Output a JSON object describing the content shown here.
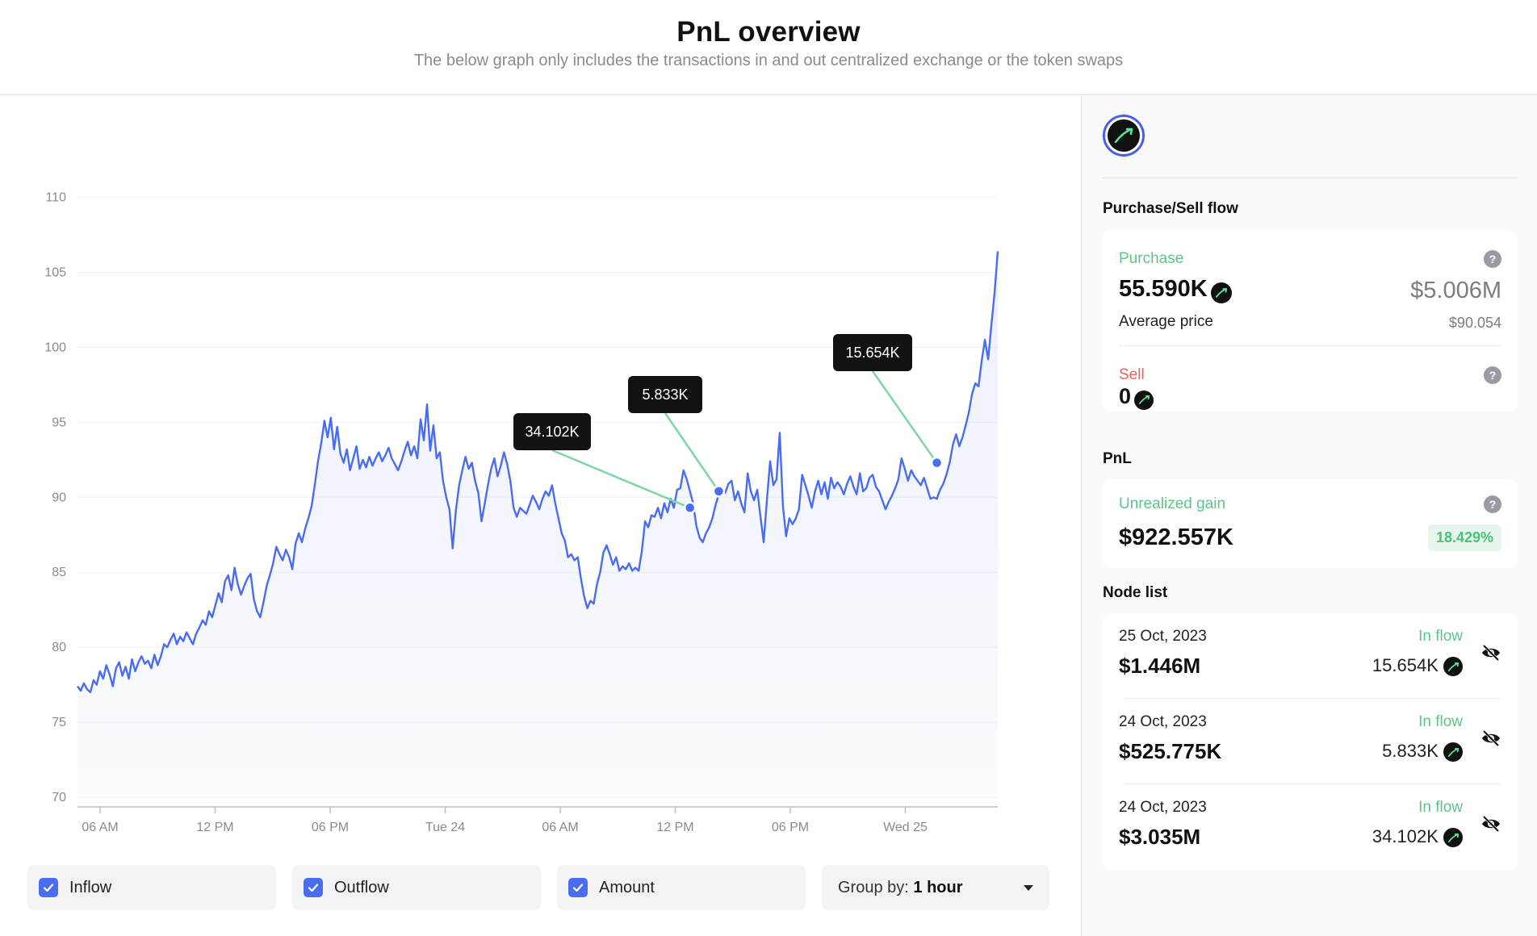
{
  "header": {
    "title": "PnL overview",
    "subtitle": "The below graph only includes the transactions in and out centralized exchange or the token swaps"
  },
  "chart_data": {
    "type": "line",
    "ylim": [
      70,
      111
    ],
    "y_ticks": [
      "110",
      "105",
      "100",
      "95",
      "90",
      "85",
      "80",
      "75",
      "70"
    ],
    "x_ticks": [
      "06 AM",
      "12 PM",
      "06 PM",
      "Tue 24",
      "06 AM",
      "12 PM",
      "06 PM",
      "Wed 25"
    ],
    "line_color": "#4a6cf0",
    "series": [
      {
        "values": [
          77.4,
          77.1,
          77.6,
          77.2,
          77.0,
          77.8,
          77.5,
          78.4,
          77.9,
          78.8,
          78.2,
          77.4,
          78.6,
          79.0,
          78.1,
          78.7,
          77.9,
          79.2,
          78.4,
          79.0,
          79.4,
          78.9,
          79.1,
          78.6,
          79.5,
          78.8,
          79.4,
          80.2,
          80.0,
          80.5,
          80.9,
          80.2,
          80.7,
          80.4,
          81.0,
          80.6,
          80.2,
          80.9,
          81.3,
          81.8,
          81.5,
          82.4,
          82.0,
          82.8,
          83.6,
          83.0,
          84.4,
          84.8,
          83.8,
          85.3,
          84.2,
          83.5,
          84.1,
          84.6,
          84.9,
          83.2,
          82.4,
          82.0,
          83.0,
          84.1,
          84.8,
          85.6,
          86.7,
          86.2,
          85.8,
          86.5,
          86.0,
          85.2,
          86.9,
          87.6,
          87.0,
          87.9,
          88.6,
          89.4,
          90.8,
          92.4,
          93.6,
          95.1,
          94.0,
          95.3,
          93.2,
          94.7,
          92.9,
          92.3,
          93.2,
          91.8,
          92.6,
          93.4,
          91.9,
          92.5,
          92.0,
          92.7,
          92.1,
          92.6,
          93.0,
          92.4,
          92.8,
          93.3,
          92.6,
          92.2,
          91.8,
          92.4,
          93.1,
          93.7,
          92.8,
          93.4,
          92.6,
          95.2,
          93.8,
          96.2,
          93.1,
          94.8,
          92.6,
          93.0,
          91.1,
          90.0,
          89.2,
          86.6,
          89.1,
          90.8,
          91.8,
          92.7,
          91.9,
          92.3,
          91.1,
          90.3,
          88.4,
          89.6,
          90.8,
          91.9,
          92.6,
          91.4,
          92.1,
          93.0,
          92.2,
          91.1,
          89.3,
          88.7,
          89.3,
          89.1,
          88.9,
          89.5,
          90.1,
          89.7,
          89.2,
          89.9,
          90.4,
          90.1,
          90.8,
          89.6,
          88.6,
          87.6,
          87.1,
          86.0,
          86.2,
          85.8,
          86.0,
          84.6,
          83.4,
          82.6,
          83.1,
          82.9,
          84.2,
          85.0,
          86.3,
          86.8,
          86.2,
          85.5,
          86.0,
          85.1,
          85.4,
          85.2,
          85.6,
          85.1,
          85.3,
          85.1,
          86.4,
          88.4,
          88.0,
          88.8,
          88.7,
          89.3,
          88.6,
          89.6,
          89.0,
          89.9,
          89.3,
          90.5,
          90.6,
          91.8,
          91.2,
          90.4,
          89.6,
          88.1,
          87.3,
          87.0,
          87.6,
          88.0,
          88.6,
          89.5,
          90.2,
          90.5,
          90.3,
          90.9,
          91.1,
          89.8,
          90.4,
          89.6,
          89.0,
          91.6,
          90.4,
          89.8,
          90.5,
          88.7,
          87.0,
          89.8,
          92.4,
          90.8,
          91.2,
          94.3,
          89.4,
          87.4,
          88.6,
          88.2,
          88.6,
          89.2,
          91.5,
          90.8,
          90.1,
          89.3,
          90.4,
          91.1,
          90.2,
          91.0,
          89.9,
          91.3,
          90.6,
          91.0,
          90.7,
          90.2,
          90.9,
          91.4,
          90.7,
          90.2,
          91.6,
          90.4,
          90.6,
          91.3,
          91.5,
          90.7,
          90.4,
          89.8,
          89.2,
          89.7,
          90.1,
          90.6,
          91.2,
          92.6,
          91.9,
          91.1,
          91.8,
          91.4,
          91.1,
          90.8,
          91.3,
          90.6,
          89.9,
          90.0,
          89.9,
          90.5,
          90.9,
          91.5,
          92.3,
          93.5,
          94.2,
          93.4,
          94.0,
          94.8,
          95.7,
          96.9,
          97.6,
          97.4,
          99.1,
          100.5,
          99.2,
          101.5,
          103.6,
          106.4
        ]
      }
    ],
    "annotations": [
      {
        "label": "34.102K",
        "x_index": 191,
        "y": 89.3
      },
      {
        "label": "5.833K",
        "x_index": 200,
        "y": 90.4
      },
      {
        "label": "15.654K",
        "x_index": 268,
        "y": 92.3
      }
    ]
  },
  "controls": {
    "inflow_label": "Inflow",
    "outflow_label": "Outflow",
    "amount_label": "Amount",
    "group_prefix": "Group by: ",
    "group_value": "1 hour"
  },
  "panel": {
    "flow_title": "Purchase/Sell flow",
    "purchase_label": "Purchase",
    "purchase_amount": "55.590K",
    "purchase_usd": "$5.006M",
    "avg_label": "Average price",
    "avg_value": "$90.054",
    "sell_label": "Sell",
    "sell_amount": "0",
    "pnl_title": "PnL",
    "unrealized_label": "Unrealized gain",
    "unrealized_value": "$922.557K",
    "unrealized_pct": "18.429%",
    "node_title": "Node list",
    "nodes": [
      {
        "date": "25 Oct, 2023",
        "flow": "In flow",
        "usd": "$1.446M",
        "amount": "15.654K"
      },
      {
        "date": "24 Oct, 2023",
        "flow": "In flow",
        "usd": "$525.775K",
        "amount": "5.833K"
      },
      {
        "date": "24 Oct, 2023",
        "flow": "In flow",
        "usd": "$3.035M",
        "amount": "34.102K"
      }
    ]
  }
}
